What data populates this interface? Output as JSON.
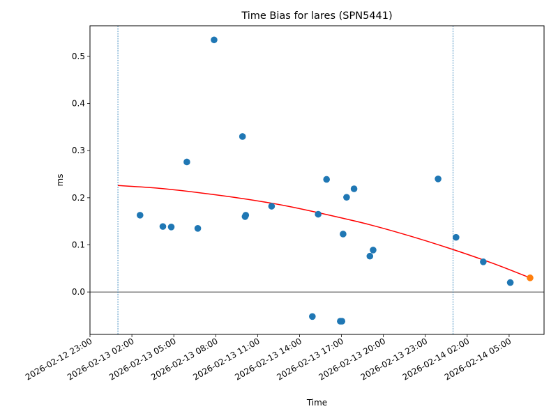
{
  "chart_data": {
    "type": "scatter",
    "title": "Time Bias for lares (SPN5441)",
    "xlabel": "Time",
    "ylabel": "ms",
    "xlim": [
      "2026-02-12 23:00",
      "2026-02-14 07:30"
    ],
    "ylim": [
      -0.09,
      0.565
    ],
    "x_ticks": [
      "2026-02-12 23:00",
      "2026-02-13 02:00",
      "2026-02-13 05:00",
      "2026-02-13 08:00",
      "2026-02-13 11:00",
      "2026-02-13 14:00",
      "2026-02-13 17:00",
      "2026-02-13 20:00",
      "2026-02-13 23:00",
      "2026-02-14 02:00",
      "2026-02-14 05:00"
    ],
    "y_ticks": [
      "0.0",
      "0.1",
      "0.2",
      "0.3",
      "0.4",
      "0.5"
    ],
    "reference_hline": 0.0,
    "vertical_markers": [
      "2026-02-13 01:00",
      "2026-02-14 00:59"
    ],
    "points": [
      {
        "x": "2026-02-13 02:35",
        "y": 0.163
      },
      {
        "x": "2026-02-13 04:13",
        "y": 0.139
      },
      {
        "x": "2026-02-13 04:49",
        "y": 0.138
      },
      {
        "x": "2026-02-13 05:56",
        "y": 0.276
      },
      {
        "x": "2026-02-13 06:43",
        "y": 0.135
      },
      {
        "x": "2026-02-13 07:53",
        "y": 0.535
      },
      {
        "x": "2026-02-13 09:55",
        "y": 0.33
      },
      {
        "x": "2026-02-13 10:06",
        "y": 0.16
      },
      {
        "x": "2026-02-13 10:09",
        "y": 0.163
      },
      {
        "x": "2026-02-13 12:00",
        "y": 0.182
      },
      {
        "x": "2026-02-13 14:55",
        "y": -0.052
      },
      {
        "x": "2026-02-13 15:20",
        "y": 0.165
      },
      {
        "x": "2026-02-13 15:56",
        "y": 0.239
      },
      {
        "x": "2026-02-13 16:55",
        "y": -0.062
      },
      {
        "x": "2026-02-13 17:02",
        "y": -0.062
      },
      {
        "x": "2026-02-13 17:07",
        "y": 0.123
      },
      {
        "x": "2026-02-13 17:22",
        "y": 0.201
      },
      {
        "x": "2026-02-13 17:54",
        "y": 0.219
      },
      {
        "x": "2026-02-13 19:02",
        "y": 0.076
      },
      {
        "x": "2026-02-13 19:16",
        "y": 0.089
      },
      {
        "x": "2026-02-13 23:55",
        "y": 0.24
      },
      {
        "x": "2026-02-14 01:12",
        "y": 0.116
      },
      {
        "x": "2026-02-14 03:09",
        "y": 0.064
      },
      {
        "x": "2026-02-14 05:05",
        "y": 0.02
      }
    ],
    "highlight_point": {
      "x": "2026-02-14 06:30",
      "y": 0.03
    },
    "fit_curve": {
      "x": [
        "2026-02-13 01:00",
        "2026-02-13 04:00",
        "2026-02-13 07:00",
        "2026-02-13 10:00",
        "2026-02-13 13:00",
        "2026-02-13 16:00",
        "2026-02-13 19:00",
        "2026-02-13 22:00",
        "2026-02-14 01:00",
        "2026-02-14 04:00",
        "2026-02-14 06:30"
      ],
      "y": [
        0.226,
        0.22,
        0.21,
        0.198,
        0.183,
        0.164,
        0.143,
        0.118,
        0.09,
        0.059,
        0.03
      ]
    },
    "colors": {
      "points": "#1f77b4",
      "highlight": "#ff7f0e",
      "fit": "#ff0000",
      "vertical_markers": "#1f77b4",
      "zero_line": "#000000"
    },
    "grid": false,
    "legend": "none"
  }
}
